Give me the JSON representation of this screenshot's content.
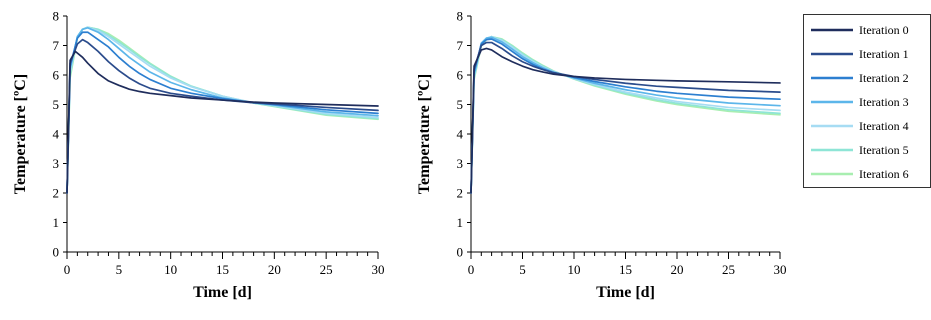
{
  "chart_data": [
    {
      "type": "line",
      "title": "",
      "xlabel": "Time [d]",
      "ylabel": "Temperature [ºC]",
      "xlim": [
        0,
        30
      ],
      "ylim": [
        0,
        8
      ],
      "xticks": [
        0,
        5,
        10,
        15,
        20,
        25,
        30
      ],
      "yticks": [
        0,
        1,
        2,
        3,
        4,
        5,
        6,
        7,
        8
      ],
      "series": [
        {
          "name": "Iteration 0",
          "color": "#1f2d5c",
          "points": [
            [
              0,
              2.0
            ],
            [
              0.3,
              6.5
            ],
            [
              0.8,
              6.8
            ],
            [
              1.5,
              6.6
            ],
            [
              2,
              6.4
            ],
            [
              3,
              6.05
            ],
            [
              4,
              5.8
            ],
            [
              5,
              5.65
            ],
            [
              6,
              5.52
            ],
            [
              7,
              5.44
            ],
            [
              8,
              5.38
            ],
            [
              10,
              5.3
            ],
            [
              12,
              5.22
            ],
            [
              15,
              5.15
            ],
            [
              18,
              5.08
            ],
            [
              20,
              5.05
            ],
            [
              25,
              5.0
            ],
            [
              30,
              4.95
            ]
          ]
        },
        {
          "name": "Iteration 1",
          "color": "#2b4c8c",
          "points": [
            [
              0,
              2.0
            ],
            [
              0.3,
              6.4
            ],
            [
              1,
              7.05
            ],
            [
              1.5,
              7.2
            ],
            [
              2,
              7.1
            ],
            [
              3,
              6.8
            ],
            [
              4,
              6.45
            ],
            [
              5,
              6.15
            ],
            [
              6,
              5.9
            ],
            [
              7,
              5.7
            ],
            [
              8,
              5.55
            ],
            [
              10,
              5.38
            ],
            [
              12,
              5.28
            ],
            [
              15,
              5.15
            ],
            [
              18,
              5.06
            ],
            [
              20,
              5.02
            ],
            [
              25,
              4.9
            ],
            [
              30,
              4.8
            ]
          ]
        },
        {
          "name": "Iteration 2",
          "color": "#2c7fd0",
          "points": [
            [
              0,
              2.0
            ],
            [
              0.3,
              6.3
            ],
            [
              1,
              7.25
            ],
            [
              1.5,
              7.45
            ],
            [
              2,
              7.45
            ],
            [
              3,
              7.2
            ],
            [
              4,
              6.95
            ],
            [
              5,
              6.6
            ],
            [
              6,
              6.3
            ],
            [
              7,
              6.05
            ],
            [
              8,
              5.85
            ],
            [
              10,
              5.55
            ],
            [
              12,
              5.38
            ],
            [
              15,
              5.2
            ],
            [
              18,
              5.06
            ],
            [
              20,
              5.0
            ],
            [
              25,
              4.82
            ],
            [
              30,
              4.7
            ]
          ]
        },
        {
          "name": "Iteration 3",
          "color": "#5cb6ea",
          "points": [
            [
              0,
              2.0
            ],
            [
              0.3,
              6.2
            ],
            [
              1,
              7.3
            ],
            [
              1.5,
              7.55
            ],
            [
              2,
              7.6
            ],
            [
              3,
              7.45
            ],
            [
              4,
              7.2
            ],
            [
              5,
              6.9
            ],
            [
              6,
              6.6
            ],
            [
              7,
              6.35
            ],
            [
              8,
              6.1
            ],
            [
              10,
              5.75
            ],
            [
              12,
              5.5
            ],
            [
              15,
              5.22
            ],
            [
              18,
              5.06
            ],
            [
              20,
              4.98
            ],
            [
              25,
              4.75
            ],
            [
              30,
              4.62
            ]
          ]
        },
        {
          "name": "Iteration 4",
          "color": "#a6dcf3",
          "points": [
            [
              0,
              2.0
            ],
            [
              0.3,
              6.1
            ],
            [
              1,
              7.3
            ],
            [
              1.5,
              7.55
            ],
            [
              2,
              7.62
            ],
            [
              3,
              7.5
            ],
            [
              4,
              7.3
            ],
            [
              5,
              7.05
            ],
            [
              6,
              6.8
            ],
            [
              7,
              6.55
            ],
            [
              8,
              6.3
            ],
            [
              10,
              5.9
            ],
            [
              12,
              5.6
            ],
            [
              15,
              5.28
            ],
            [
              18,
              5.06
            ],
            [
              20,
              4.96
            ],
            [
              25,
              4.7
            ],
            [
              30,
              4.56
            ]
          ]
        },
        {
          "name": "Iteration 5",
          "color": "#8ee5d6",
          "points": [
            [
              0,
              2.0
            ],
            [
              0.3,
              6.0
            ],
            [
              1,
              7.3
            ],
            [
              1.5,
              7.55
            ],
            [
              2,
              7.62
            ],
            [
              3,
              7.55
            ],
            [
              4,
              7.35
            ],
            [
              5,
              7.12
            ],
            [
              6,
              6.88
            ],
            [
              7,
              6.62
            ],
            [
              8,
              6.38
            ],
            [
              10,
              5.95
            ],
            [
              12,
              5.62
            ],
            [
              15,
              5.28
            ],
            [
              18,
              5.05
            ],
            [
              20,
              4.94
            ],
            [
              25,
              4.66
            ],
            [
              30,
              4.52
            ]
          ]
        },
        {
          "name": "Iteration 6",
          "color": "#a8eeb0",
          "points": [
            [
              0,
              2.0
            ],
            [
              0.3,
              5.9
            ],
            [
              1,
              7.25
            ],
            [
              1.5,
              7.55
            ],
            [
              2,
              7.62
            ],
            [
              3,
              7.55
            ],
            [
              4,
              7.4
            ],
            [
              5,
              7.18
            ],
            [
              6,
              6.92
            ],
            [
              7,
              6.66
            ],
            [
              8,
              6.4
            ],
            [
              10,
              5.96
            ],
            [
              12,
              5.62
            ],
            [
              15,
              5.28
            ],
            [
              18,
              5.05
            ],
            [
              20,
              4.93
            ],
            [
              25,
              4.64
            ],
            [
              30,
              4.5
            ]
          ]
        }
      ]
    },
    {
      "type": "line",
      "title": "",
      "xlabel": "Time [d]",
      "ylabel": "Temperature [ºC]",
      "xlim": [
        0,
        30
      ],
      "ylim": [
        0,
        8
      ],
      "xticks": [
        0,
        5,
        10,
        15,
        20,
        25,
        30
      ],
      "yticks": [
        0,
        1,
        2,
        3,
        4,
        5,
        6,
        7,
        8
      ],
      "series": [
        {
          "name": "Iteration 0",
          "color": "#1f2d5c",
          "points": [
            [
              0,
              2.0
            ],
            [
              0.3,
              6.3
            ],
            [
              1,
              6.85
            ],
            [
              1.5,
              6.9
            ],
            [
              2,
              6.85
            ],
            [
              3,
              6.62
            ],
            [
              4,
              6.45
            ],
            [
              5,
              6.3
            ],
            [
              6,
              6.18
            ],
            [
              7,
              6.1
            ],
            [
              8,
              6.03
            ],
            [
              10,
              5.95
            ],
            [
              12,
              5.9
            ],
            [
              15,
              5.85
            ],
            [
              18,
              5.82
            ],
            [
              20,
              5.8
            ],
            [
              25,
              5.77
            ],
            [
              30,
              5.73
            ]
          ]
        },
        {
          "name": "Iteration 1",
          "color": "#2b4c8c",
          "points": [
            [
              0,
              2.0
            ],
            [
              0.3,
              6.2
            ],
            [
              1,
              7.0
            ],
            [
              1.5,
              7.1
            ],
            [
              2,
              7.1
            ],
            [
              3,
              6.9
            ],
            [
              4,
              6.65
            ],
            [
              5,
              6.45
            ],
            [
              6,
              6.3
            ],
            [
              7,
              6.18
            ],
            [
              8,
              6.08
            ],
            [
              10,
              5.95
            ],
            [
              12,
              5.85
            ],
            [
              15,
              5.72
            ],
            [
              18,
              5.62
            ],
            [
              20,
              5.58
            ],
            [
              25,
              5.48
            ],
            [
              30,
              5.42
            ]
          ]
        },
        {
          "name": "Iteration 2",
          "color": "#2c7fd0",
          "points": [
            [
              0,
              2.0
            ],
            [
              0.3,
              6.1
            ],
            [
              1,
              7.05
            ],
            [
              1.5,
              7.2
            ],
            [
              2,
              7.22
            ],
            [
              3,
              7.05
            ],
            [
              4,
              6.8
            ],
            [
              5,
              6.55
            ],
            [
              6,
              6.36
            ],
            [
              7,
              6.2
            ],
            [
              8,
              6.08
            ],
            [
              10,
              5.92
            ],
            [
              12,
              5.78
            ],
            [
              15,
              5.6
            ],
            [
              18,
              5.45
            ],
            [
              20,
              5.38
            ],
            [
              25,
              5.25
            ],
            [
              30,
              5.18
            ]
          ]
        },
        {
          "name": "Iteration 3",
          "color": "#5cb6ea",
          "points": [
            [
              0,
              2.0
            ],
            [
              0.3,
              6.0
            ],
            [
              1,
              7.08
            ],
            [
              1.5,
              7.25
            ],
            [
              2,
              7.28
            ],
            [
              3,
              7.12
            ],
            [
              4,
              6.88
            ],
            [
              5,
              6.62
            ],
            [
              6,
              6.42
            ],
            [
              7,
              6.24
            ],
            [
              8,
              6.1
            ],
            [
              10,
              5.9
            ],
            [
              12,
              5.72
            ],
            [
              15,
              5.5
            ],
            [
              18,
              5.32
            ],
            [
              20,
              5.22
            ],
            [
              25,
              5.05
            ],
            [
              30,
              4.96
            ]
          ]
        },
        {
          "name": "Iteration 4",
          "color": "#a6dcf3",
          "points": [
            [
              0,
              2.0
            ],
            [
              0.3,
              5.95
            ],
            [
              1,
              7.05
            ],
            [
              1.5,
              7.25
            ],
            [
              2,
              7.3
            ],
            [
              3,
              7.17
            ],
            [
              4,
              6.94
            ],
            [
              5,
              6.68
            ],
            [
              6,
              6.46
            ],
            [
              7,
              6.27
            ],
            [
              8,
              6.12
            ],
            [
              10,
              5.88
            ],
            [
              12,
              5.68
            ],
            [
              15,
              5.42
            ],
            [
              18,
              5.22
            ],
            [
              20,
              5.1
            ],
            [
              25,
              4.9
            ],
            [
              30,
              4.8
            ]
          ]
        },
        {
          "name": "Iteration 5",
          "color": "#8ee5d6",
          "points": [
            [
              0,
              2.0
            ],
            [
              0.3,
              5.9
            ],
            [
              1,
              7.0
            ],
            [
              1.5,
              7.22
            ],
            [
              2,
              7.3
            ],
            [
              3,
              7.2
            ],
            [
              4,
              6.98
            ],
            [
              5,
              6.72
            ],
            [
              6,
              6.5
            ],
            [
              7,
              6.3
            ],
            [
              8,
              6.13
            ],
            [
              10,
              5.87
            ],
            [
              12,
              5.65
            ],
            [
              15,
              5.38
            ],
            [
              18,
              5.16
            ],
            [
              20,
              5.04
            ],
            [
              25,
              4.82
            ],
            [
              30,
              4.7
            ]
          ]
        },
        {
          "name": "Iteration 6",
          "color": "#a8eeb0",
          "points": [
            [
              0,
              2.0
            ],
            [
              0.3,
              5.85
            ],
            [
              1,
              6.98
            ],
            [
              1.5,
              7.2
            ],
            [
              2,
              7.3
            ],
            [
              3,
              7.22
            ],
            [
              4,
              7.0
            ],
            [
              5,
              6.75
            ],
            [
              6,
              6.52
            ],
            [
              7,
              6.32
            ],
            [
              8,
              6.14
            ],
            [
              10,
              5.86
            ],
            [
              12,
              5.63
            ],
            [
              15,
              5.35
            ],
            [
              18,
              5.12
            ],
            [
              20,
              5.0
            ],
            [
              25,
              4.77
            ],
            [
              30,
              4.65
            ]
          ]
        }
      ]
    }
  ],
  "legend": {
    "placement": "right",
    "entries": [
      "Iteration 0",
      "Iteration 1",
      "Iteration 2",
      "Iteration 3",
      "Iteration 4",
      "Iteration 5",
      "Iteration 6"
    ],
    "colors": [
      "#1f2d5c",
      "#2b4c8c",
      "#2c7fd0",
      "#5cb6ea",
      "#a6dcf3",
      "#8ee5d6",
      "#a8eeb0"
    ]
  }
}
